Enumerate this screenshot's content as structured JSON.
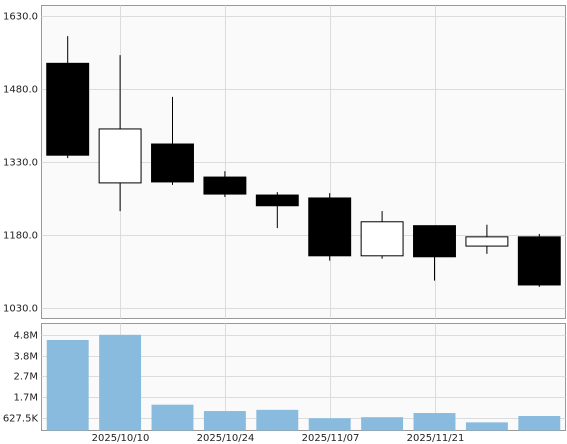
{
  "chart_data": {
    "type": "candlestick",
    "categories": [
      null,
      "2025/10/10",
      null,
      "2025/10/24",
      null,
      "2025/11/07",
      null,
      "2025/11/21",
      null,
      null
    ],
    "open": [
      1533,
      1287,
      1367,
      1299,
      1262,
      1256,
      1137,
      1199,
      1157,
      1176
    ],
    "high": [
      1589,
      1550,
      1464,
      1311,
      1268,
      1266,
      1229,
      1199,
      1201,
      1182
    ],
    "low": [
      1338,
      1229,
      1283,
      1258,
      1194,
      1127,
      1131,
      1086,
      1141,
      1073
    ],
    "close": [
      1344,
      1398,
      1289,
      1264,
      1240,
      1137,
      1207,
      1135,
      1176,
      1077
    ],
    "up_color": "#ffffff",
    "down_color": "#000000",
    "ylim": [
      1008,
      1652
    ],
    "yticks": [
      {
        "value": 1030,
        "label": "1030.0"
      },
      {
        "value": 1180,
        "label": "1180.0"
      },
      {
        "value": 1330,
        "label": "1330.0"
      },
      {
        "value": 1480,
        "label": "1480.0"
      },
      {
        "value": 1630,
        "label": "1630.0"
      }
    ],
    "grid": true,
    "volume": {
      "type": "bar",
      "values": [
        4560000,
        4820000,
        1300000,
        980000,
        1040000,
        620000,
        670000,
        880000,
        410000,
        730000
      ],
      "color": "#88bbdd",
      "ylim": [
        0,
        5390000
      ],
      "yticks": [
        {
          "value": 627500,
          "label": "627.5K"
        },
        {
          "value": 1677500,
          "label": "1.7M"
        },
        {
          "value": 2727500,
          "label": "2.7M"
        },
        {
          "value": 3777500,
          "label": "3.8M"
        },
        {
          "value": 4827500,
          "label": "4.8M"
        }
      ]
    }
  }
}
